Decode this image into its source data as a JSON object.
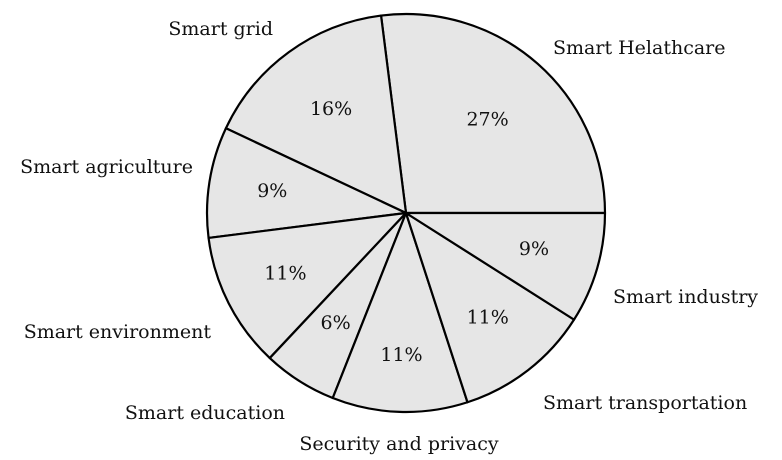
{
  "chart_data": {
    "type": "pie",
    "title": "",
    "start_angle_deg": 0,
    "direction": "counterclockwise",
    "slice_color": "#e6e6e6",
    "stroke_color": "#000000",
    "slices": [
      {
        "label": "Smart Helathcare",
        "value": 27,
        "text": "27%"
      },
      {
        "label": "Smart grid",
        "value": 16,
        "text": "16%"
      },
      {
        "label": "Smart agriculture",
        "value": 9,
        "text": "9%"
      },
      {
        "label": "Smart environment",
        "value": 11,
        "text": "11%"
      },
      {
        "label": "Smart education",
        "value": 6,
        "text": "6%"
      },
      {
        "label": "Security and privacy",
        "value": 11,
        "text": "11%"
      },
      {
        "label": "Smart transportation",
        "value": 11,
        "text": "11%"
      },
      {
        "label": "Smart industry",
        "value": 9,
        "text": "9%"
      }
    ]
  }
}
